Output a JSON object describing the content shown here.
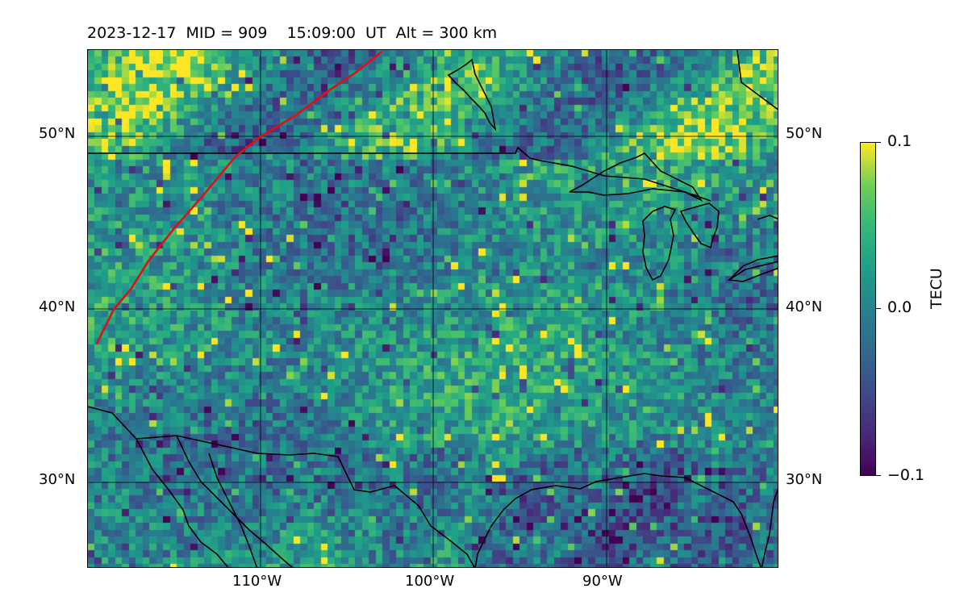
{
  "header": {
    "date": "2023-12-17",
    "mid": "MID = 909",
    "time": "15:09:00  UT",
    "alt": "Alt = 300 km"
  },
  "map": {
    "extent_lon": [
      -119,
      -79
    ],
    "extent_lat": [
      25,
      55
    ],
    "lat_ticks_left": [
      "50°N",
      "40°N",
      "30°N"
    ],
    "lat_ticks_right": [
      "50°N",
      "40°N",
      "30°N"
    ],
    "lon_ticks": [
      "110°W",
      "100°W",
      "90°W"
    ],
    "gridlines": true,
    "track_color": "#e01010",
    "track_points_lonlat": [
      [
        -118.5,
        38
      ],
      [
        -117.5,
        40
      ],
      [
        -116.5,
        41.2
      ],
      [
        -115.5,
        42.8
      ],
      [
        -114,
        44.7
      ],
      [
        -112.5,
        46.4
      ],
      [
        -110.5,
        48.8
      ],
      [
        -109,
        50
      ],
      [
        -107,
        51.2
      ],
      [
        -105,
        52.7
      ],
      [
        -103.5,
        53.7
      ],
      [
        -102,
        54.9
      ]
    ]
  },
  "colorbar": {
    "label": "TECU",
    "ticks": [
      "0.1",
      "0.0",
      "−0.1"
    ],
    "range": [
      -0.1,
      0.1
    ],
    "colormap": "viridis"
  }
}
